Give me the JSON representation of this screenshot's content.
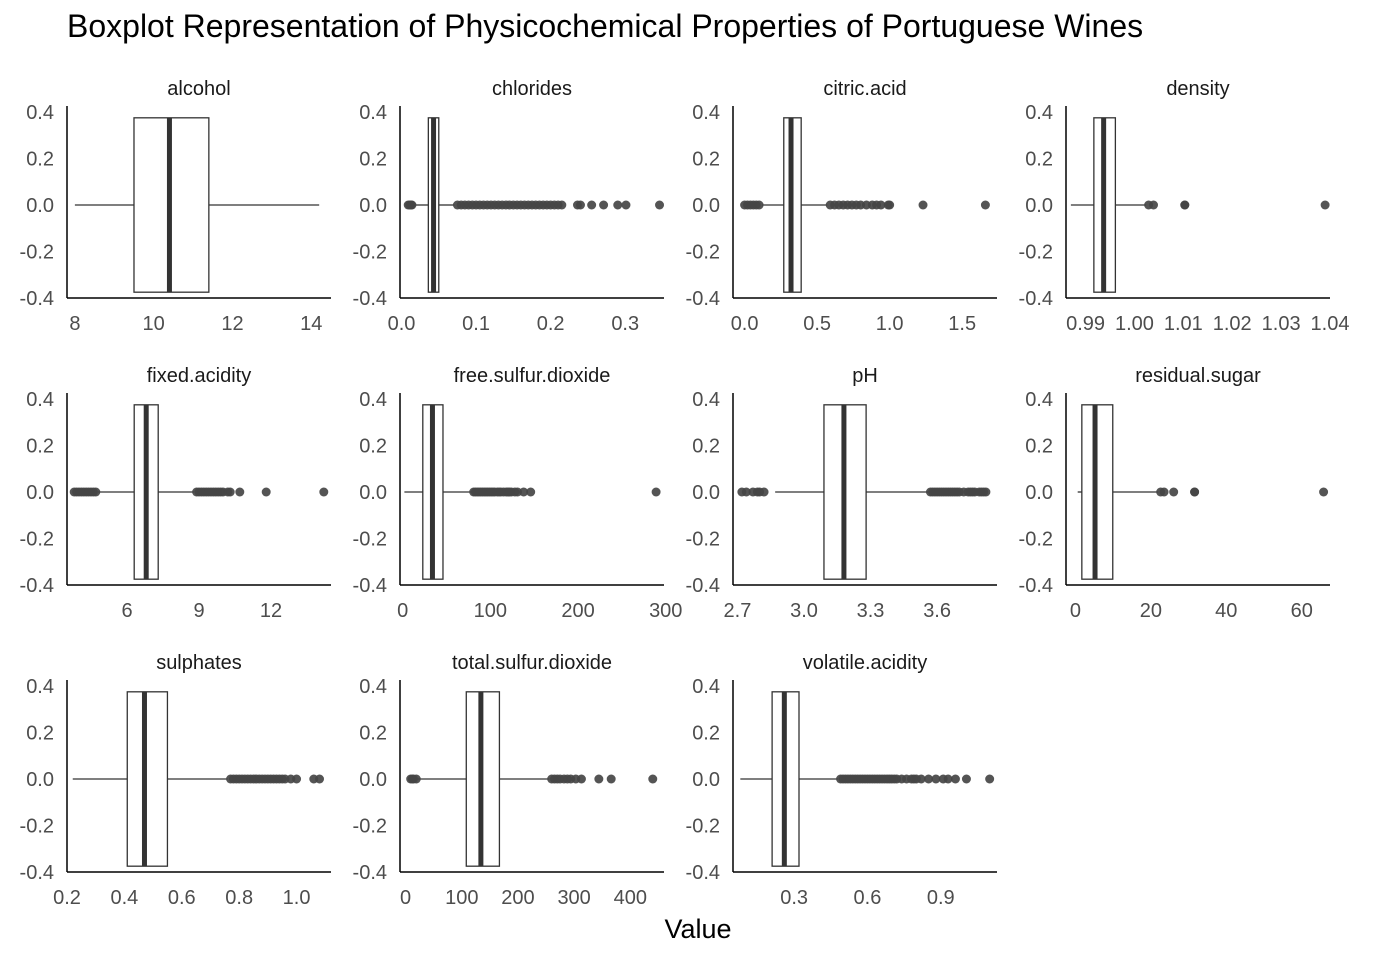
{
  "title": "Boxplot Representation of Physicochemical Properties of Portuguese Wines",
  "colors": {
    "outlier": "#454545",
    "box_stroke": "#333333",
    "median": "#333333",
    "axis": "#000000",
    "tick_text": "#4d4d4d",
    "facet_text": "#1a1a1a"
  },
  "chart_data": {
    "type": "boxplot",
    "title": "Boxplot Representation of Physicochemical Properties of Portuguese Wines",
    "xlabel": "Value",
    "ylabel": "",
    "y_ticks": [
      "0.4",
      "0.2",
      "0.0",
      "-0.2",
      "-0.4"
    ],
    "ylim": [
      -0.4,
      0.4
    ],
    "grid": false,
    "facets": [
      {
        "name": "alcohol",
        "xlim": [
          7.8,
          14.5
        ],
        "x_ticks": [
          {
            "v": 8,
            "l": "8"
          },
          {
            "v": 10,
            "l": "10"
          },
          {
            "v": 12,
            "l": "12"
          },
          {
            "v": 14,
            "l": "14"
          }
        ],
        "whisker_low": 8.0,
        "q1": 9.5,
        "median": 10.4,
        "q3": 11.4,
        "whisker_high": 14.2,
        "outliers": []
      },
      {
        "name": "chlorides",
        "xlim": [
          -0.002,
          0.352
        ],
        "x_ticks": [
          {
            "v": 0.0,
            "l": "0.0"
          },
          {
            "v": 0.1,
            "l": "0.1"
          },
          {
            "v": 0.2,
            "l": "0.2"
          },
          {
            "v": 0.3,
            "l": "0.3"
          }
        ],
        "whisker_low": 0.017,
        "q1": 0.036,
        "median": 0.043,
        "q3": 0.05,
        "whisker_high": 0.071,
        "outliers": [
          0.009,
          0.011,
          0.012,
          0.013,
          0.014,
          0.075,
          0.08,
          0.085,
          0.09,
          0.095,
          0.1,
          0.105,
          0.11,
          0.115,
          0.12,
          0.125,
          0.13,
          0.135,
          0.14,
          0.145,
          0.15,
          0.155,
          0.16,
          0.165,
          0.17,
          0.175,
          0.18,
          0.185,
          0.19,
          0.195,
          0.2,
          0.205,
          0.21,
          0.215,
          0.236,
          0.24,
          0.255,
          0.271,
          0.29,
          0.301,
          0.346
        ]
      },
      {
        "name": "citric.acid",
        "xlim": [
          -0.08,
          1.74
        ],
        "x_ticks": [
          {
            "v": 0.0,
            "l": "0.0"
          },
          {
            "v": 0.5,
            "l": "0.5"
          },
          {
            "v": 1.0,
            "l": "1.0"
          },
          {
            "v": 1.5,
            "l": "1.5"
          }
        ],
        "whisker_low": 0.12,
        "q1": 0.27,
        "median": 0.32,
        "q3": 0.39,
        "whisker_high": 0.57,
        "outliers": [
          0.0,
          0.02,
          0.04,
          0.06,
          0.08,
          0.1,
          0.59,
          0.62,
          0.65,
          0.68,
          0.71,
          0.74,
          0.77,
          0.8,
          0.84,
          0.88,
          0.91,
          0.94,
          0.99,
          1.0,
          1.23,
          1.66
        ]
      },
      {
        "name": "density",
        "xlim": [
          0.986,
          1.04
        ],
        "x_ticks": [
          {
            "v": 0.99,
            "l": "0.99"
          },
          {
            "v": 1.0,
            "l": "1.00"
          },
          {
            "v": 1.01,
            "l": "1.01"
          },
          {
            "v": 1.02,
            "l": "1.02"
          },
          {
            "v": 1.03,
            "l": "1.03"
          },
          {
            "v": 1.04,
            "l": "1.04"
          }
        ],
        "whisker_low": 0.987,
        "q1": 0.9917,
        "median": 0.9937,
        "q3": 0.9961,
        "whisker_high": 1.0024,
        "outliers": [
          1.0103,
          1.0103,
          1.0029,
          1.0039,
          1.039
        ]
      },
      {
        "name": "fixed.acidity",
        "xlim": [
          3.5,
          14.5
        ],
        "x_ticks": [
          {
            "v": 6,
            "l": "6"
          },
          {
            "v": 9,
            "l": "9"
          },
          {
            "v": 12,
            "l": "12"
          }
        ],
        "whisker_low": 4.8,
        "q1": 6.3,
        "median": 6.8,
        "q3": 7.3,
        "whisker_high": 8.8,
        "outliers": [
          3.8,
          3.9,
          4.0,
          4.1,
          4.2,
          4.3,
          4.4,
          4.5,
          4.6,
          4.7,
          8.9,
          9.0,
          9.1,
          9.2,
          9.3,
          9.4,
          9.5,
          9.6,
          9.7,
          9.8,
          9.9,
          10.0,
          10.2,
          10.3,
          10.7,
          11.8,
          14.2
        ]
      },
      {
        "name": "free.sulfur.dioxide",
        "xlim": [
          -3,
          298
        ],
        "x_ticks": [
          {
            "v": 0,
            "l": "0"
          },
          {
            "v": 100,
            "l": "100"
          },
          {
            "v": 200,
            "l": "200"
          },
          {
            "v": 300,
            "l": "300"
          }
        ],
        "whisker_low": 2,
        "q1": 23,
        "median": 34,
        "q3": 46,
        "whisker_high": 80,
        "outliers": [
          81,
          83,
          85,
          87,
          89,
          91,
          93,
          95,
          97,
          99,
          101,
          103,
          105,
          108,
          110,
          112,
          115,
          118,
          120,
          122,
          124,
          128,
          131,
          138,
          146,
          289
        ]
      },
      {
        "name": "pH",
        "xlim": [
          2.68,
          3.87
        ],
        "x_ticks": [
          {
            "v": 2.7,
            "l": "2.7"
          },
          {
            "v": 3.0,
            "l": "3.0"
          },
          {
            "v": 3.3,
            "l": "3.3"
          },
          {
            "v": 3.6,
            "l": "3.6"
          }
        ],
        "whisker_low": 2.87,
        "q1": 3.09,
        "median": 3.18,
        "q3": 3.28,
        "whisker_high": 3.56,
        "outliers": [
          2.72,
          2.74,
          2.77,
          2.79,
          2.8,
          2.82,
          3.57,
          3.58,
          3.59,
          3.6,
          3.61,
          3.62,
          3.63,
          3.64,
          3.65,
          3.66,
          3.67,
          3.68,
          3.69,
          3.7,
          3.72,
          3.74,
          3.75,
          3.76,
          3.77,
          3.79,
          3.8,
          3.81,
          3.82
        ]
      },
      {
        "name": "residual.sugar",
        "xlim": [
          -2.5,
          67.5
        ],
        "x_ticks": [
          {
            "v": 0,
            "l": "0"
          },
          {
            "v": 20,
            "l": "20"
          },
          {
            "v": 40,
            "l": "40"
          },
          {
            "v": 60,
            "l": "60"
          }
        ],
        "whisker_low": 0.6,
        "q1": 1.7,
        "median": 5.2,
        "q3": 9.9,
        "whisker_high": 22.0,
        "outliers": [
          22.6,
          23.5,
          26.05,
          31.6,
          31.6,
          65.8
        ]
      },
      {
        "name": "sulphates",
        "xlim": [
          0.2,
          1.12
        ],
        "x_ticks": [
          {
            "v": 0.2,
            "l": "0.2"
          },
          {
            "v": 0.4,
            "l": "0.4"
          },
          {
            "v": 0.6,
            "l": "0.6"
          },
          {
            "v": 0.8,
            "l": "0.8"
          },
          {
            "v": 1.0,
            "l": "1.0"
          }
        ],
        "whisker_low": 0.22,
        "q1": 0.41,
        "median": 0.47,
        "q3": 0.55,
        "whisker_high": 0.76,
        "outliers": [
          0.77,
          0.78,
          0.79,
          0.8,
          0.81,
          0.82,
          0.83,
          0.84,
          0.85,
          0.86,
          0.87,
          0.88,
          0.89,
          0.9,
          0.91,
          0.92,
          0.93,
          0.94,
          0.95,
          0.96,
          0.98,
          1.0,
          1.06,
          1.08
        ]
      },
      {
        "name": "total.sulfur.dioxide",
        "xlim": [
          -10,
          460
        ],
        "x_ticks": [
          {
            "v": 0,
            "l": "0"
          },
          {
            "v": 100,
            "l": "100"
          },
          {
            "v": 200,
            "l": "200"
          },
          {
            "v": 300,
            "l": "300"
          },
          {
            "v": 400,
            "l": "400"
          }
        ],
        "whisker_low": 10,
        "q1": 108,
        "median": 134,
        "q3": 167,
        "whisker_high": 256,
        "outliers": [
          9,
          12,
          14,
          19,
          260,
          265,
          270,
          275,
          282,
          288,
          294,
          303,
          313,
          344,
          366,
          440
        ]
      },
      {
        "name": "volatile.acidity",
        "xlim": [
          0.05,
          1.13
        ],
        "x_ticks": [
          {
            "v": 0.3,
            "l": "0.3"
          },
          {
            "v": 0.6,
            "l": "0.6"
          },
          {
            "v": 0.9,
            "l": "0.9"
          }
        ],
        "whisker_low": 0.08,
        "q1": 0.21,
        "median": 0.26,
        "q3": 0.32,
        "whisker_high": 0.48,
        "outliers": [
          0.49,
          0.5,
          0.51,
          0.52,
          0.53,
          0.54,
          0.55,
          0.56,
          0.57,
          0.58,
          0.59,
          0.6,
          0.61,
          0.62,
          0.63,
          0.64,
          0.65,
          0.66,
          0.67,
          0.68,
          0.69,
          0.7,
          0.71,
          0.72,
          0.74,
          0.76,
          0.78,
          0.79,
          0.8,
          0.82,
          0.85,
          0.88,
          0.91,
          0.93,
          0.96,
          1.005,
          1.1
        ]
      }
    ]
  }
}
